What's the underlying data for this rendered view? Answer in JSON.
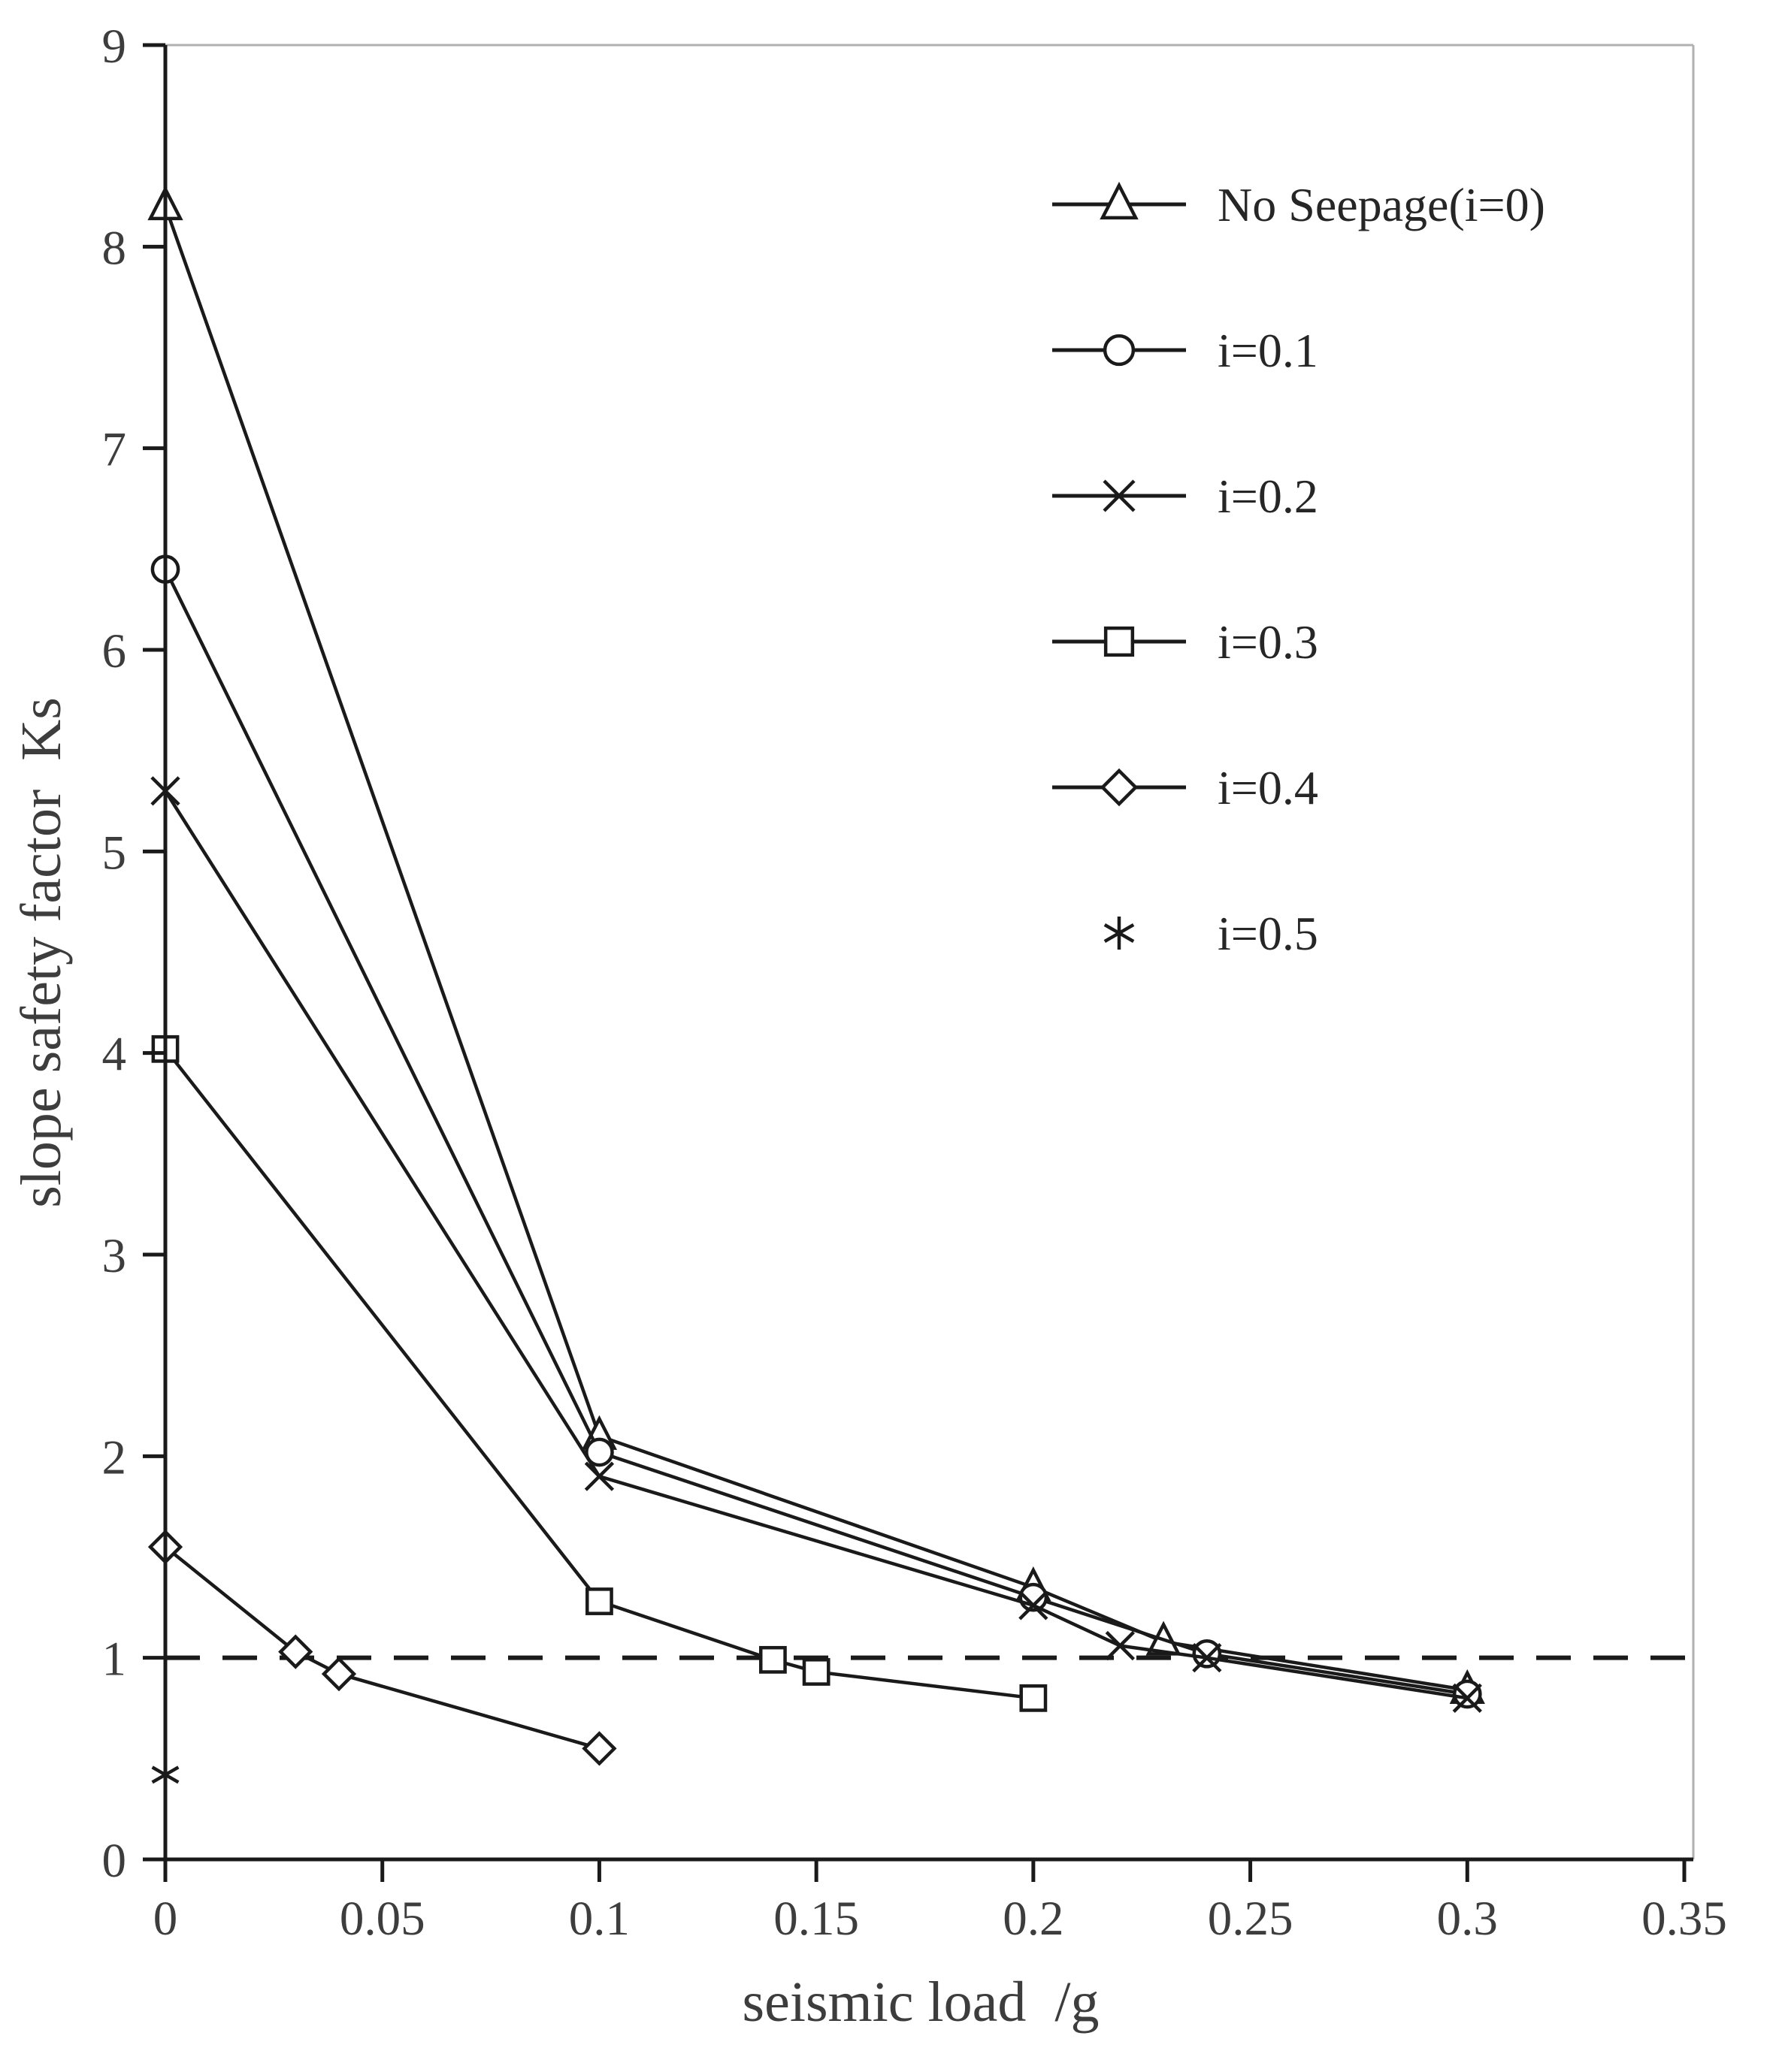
{
  "chart_data": {
    "type": "line",
    "title": "",
    "xlabel": "seismic load  /g",
    "ylabel": "slope safety factor  Ks",
    "xlim": [
      0,
      0.35
    ],
    "ylim": [
      0,
      9
    ],
    "grid": false,
    "legend_position": "top-right-inside",
    "xticks": {
      "values": [
        0,
        0.05,
        0.1,
        0.15,
        0.2,
        0.25,
        0.3,
        0.35
      ],
      "labels": [
        "0",
        "0.05",
        "0.1",
        "0.15",
        "0.2",
        "0.25",
        "0.3",
        "0.35"
      ]
    },
    "yticks": {
      "values": [
        0,
        1,
        2,
        3,
        4,
        5,
        6,
        7,
        8,
        9
      ],
      "labels": [
        "0",
        "1",
        "2",
        "3",
        "4",
        "5",
        "6",
        "7",
        "8",
        "9"
      ]
    },
    "reference_line": {
      "y": 1.0,
      "style": "dashed",
      "color": "#1a1a1a"
    },
    "colors": {
      "line": "#1a1a1a",
      "frame": "#b0b0b0",
      "text": "#3d3d3d"
    },
    "series": [
      {
        "name": "No Seepage(i=0)",
        "marker": "triangle",
        "legend_line": true,
        "points": [
          [
            0,
            8.2
          ],
          [
            0.1,
            2.1
          ],
          [
            0.2,
            1.35
          ],
          [
            0.23,
            1.08
          ],
          [
            0.3,
            0.84
          ]
        ]
      },
      {
        "name": "i=0.1",
        "marker": "circle",
        "legend_line": true,
        "points": [
          [
            0,
            6.4
          ],
          [
            0.1,
            2.02
          ],
          [
            0.2,
            1.3
          ],
          [
            0.24,
            1.02
          ],
          [
            0.3,
            0.82
          ]
        ]
      },
      {
        "name": "i=0.2",
        "marker": "x",
        "legend_line": true,
        "points": [
          [
            0,
            5.3
          ],
          [
            0.1,
            1.9
          ],
          [
            0.2,
            1.26
          ],
          [
            0.22,
            1.06
          ],
          [
            0.24,
            1.0
          ],
          [
            0.3,
            0.8
          ]
        ]
      },
      {
        "name": "i=0.3",
        "marker": "square",
        "legend_line": true,
        "points": [
          [
            0,
            4.02
          ],
          [
            0.1,
            1.28
          ],
          [
            0.14,
            0.99
          ],
          [
            0.15,
            0.93
          ],
          [
            0.2,
            0.8
          ]
        ]
      },
      {
        "name": "i=0.4",
        "marker": "diamond",
        "legend_line": true,
        "points": [
          [
            0,
            1.55
          ],
          [
            0.03,
            1.03
          ],
          [
            0.04,
            0.92
          ],
          [
            0.1,
            0.55
          ]
        ]
      },
      {
        "name": "i=0.5",
        "marker": "asterisk",
        "legend_line": false,
        "points": [
          [
            0,
            0.42
          ]
        ]
      }
    ]
  }
}
